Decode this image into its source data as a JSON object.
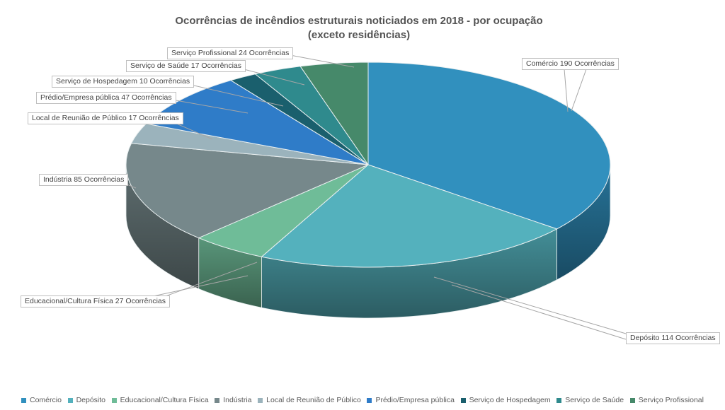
{
  "title": {
    "line1": "Ocorrências de incêndios estruturais noticiados em 2018 - por ocupação",
    "line2": "(exceto residências)"
  },
  "chart_data": {
    "type": "pie",
    "style": "3d",
    "title": "Ocorrências de incêndios estruturais noticiados em 2018 - por ocupação (exceto residências)",
    "unit_label": "Ocorrências",
    "total": 531,
    "start_angle_deg": 0,
    "direction": "clockwise",
    "legend_position": "bottom",
    "series": [
      {
        "name": "Comércio",
        "value": 190,
        "color": "#3190BE"
      },
      {
        "name": "Depósito",
        "value": 114,
        "color": "#54B1BD"
      },
      {
        "name": "Educacional/Cultura Física",
        "value": 27,
        "color": "#6FBC98"
      },
      {
        "name": "Indústria",
        "value": 85,
        "color": "#76888B"
      },
      {
        "name": "Local de Reunião de Público",
        "value": 17,
        "color": "#9BB3BC"
      },
      {
        "name": "Prédio/Empresa pública",
        "value": 47,
        "color": "#2F7CC8"
      },
      {
        "name": "Serviço de Hospedagem",
        "value": 10,
        "color": "#1A5F6D"
      },
      {
        "name": "Serviço de Saúde",
        "value": 17,
        "color": "#2F8A8D"
      },
      {
        "name": "Serviço Profissional",
        "value": 24,
        "color": "#46896A"
      }
    ]
  },
  "callouts": [
    {
      "text": "Comércio 190 Ocorrências"
    },
    {
      "text": "Depósito  114 Ocorrências"
    },
    {
      "text": "Educacional/Cultura Física 27 Ocorrências"
    },
    {
      "text": "Indústria 85 Ocorrências"
    },
    {
      "text": "Local de Reunião de Público 17 Ocorrências"
    },
    {
      "text": "Prédio/Empresa pública 47 Ocorrências"
    },
    {
      "text": "Serviço de Hospedagem 10 Ocorrências"
    },
    {
      "text": "Serviço de Saúde 17 Ocorrências"
    },
    {
      "text": "Serviço Profissional 24 Ocorrências"
    }
  ],
  "colors": {
    "leader_line": "#A6A6A6",
    "callout_border": "#BFBFBF",
    "slice_stroke": "#E9EFF0",
    "title_text": "#545454",
    "legend_text": "#595959"
  }
}
